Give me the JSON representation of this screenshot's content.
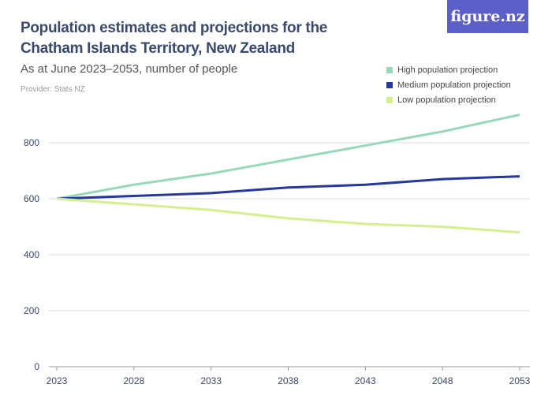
{
  "header": {
    "title": "Population estimates and projections for the Chatham Islands Territory, New Zealand",
    "subtitle": "As at June 2023–2053, number of people",
    "provider": "Provider: Stats NZ",
    "logo": "figure.nz",
    "logo_color": "#5b5fc7"
  },
  "chart_data": {
    "type": "line",
    "title": "Population estimates and projections for the Chatham Islands Territory, New Zealand",
    "subtitle": "As at June 2023–2053, number of people",
    "x": [
      2023,
      2028,
      2033,
      2038,
      2043,
      2048,
      2053
    ],
    "x_ticks": [
      "2023",
      "2028",
      "2033",
      "2038",
      "2043",
      "2048",
      "2053"
    ],
    "y_ticks": [
      "0",
      "200",
      "400",
      "600",
      "800"
    ],
    "ylim": [
      0,
      800
    ],
    "grid": true,
    "legend_position": "top-right",
    "series": [
      {
        "name": "High population projection",
        "color": "#96d8b9",
        "values": [
          600,
          650,
          690,
          740,
          790,
          840,
          900
        ]
      },
      {
        "name": "Medium population projection",
        "color": "#24399a",
        "values": [
          600,
          610,
          620,
          640,
          650,
          670,
          680
        ]
      },
      {
        "name": "Low population projection",
        "color": "#d2f08c",
        "values": [
          600,
          580,
          560,
          530,
          510,
          500,
          480
        ]
      }
    ]
  }
}
